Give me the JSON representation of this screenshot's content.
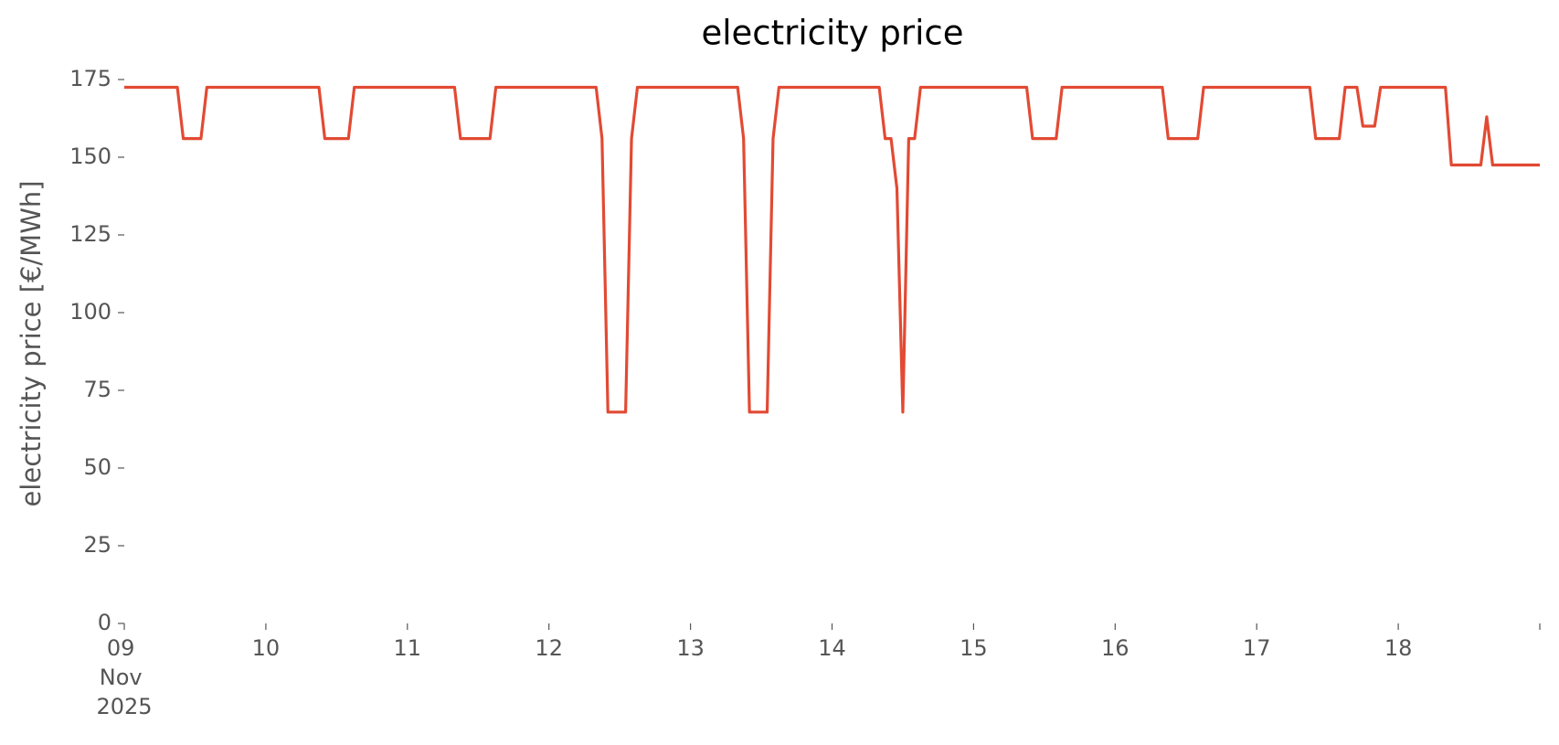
{
  "chart_data": {
    "type": "line",
    "title": "electricity price",
    "ylabel": "electricity price [€/MWh]",
    "color": "#e24a33",
    "x": [
      0,
      1,
      2,
      3,
      4,
      5,
      6,
      7,
      8,
      9,
      10,
      11,
      12,
      13,
      14,
      15,
      16,
      17,
      18,
      19,
      20,
      21,
      22,
      23,
      24,
      25,
      26,
      27,
      28,
      29,
      30,
      31,
      32,
      33,
      34,
      35,
      36,
      37,
      38,
      39,
      40,
      41,
      42,
      43,
      44,
      45,
      46,
      47,
      48,
      49,
      50,
      51,
      52,
      53,
      54,
      55,
      56,
      57,
      58,
      59,
      60,
      61,
      62,
      63,
      64,
      65,
      66,
      67,
      68,
      69,
      70,
      71,
      72,
      73,
      74,
      75,
      76,
      77,
      78,
      79,
      80,
      81,
      82,
      83,
      84,
      85,
      86,
      87,
      88,
      89,
      90,
      91,
      92,
      93,
      94,
      95,
      96,
      97,
      98,
      99,
      100,
      101,
      102,
      103,
      104,
      105,
      106,
      107,
      108,
      109,
      110,
      111,
      112,
      113,
      114,
      115,
      116,
      117,
      118,
      119,
      120,
      121,
      122,
      123,
      124,
      125,
      126,
      127,
      128,
      129,
      130,
      131,
      132,
      133,
      134,
      135,
      136,
      137,
      138,
      139,
      140,
      141,
      142,
      143,
      144,
      145,
      146,
      147,
      148,
      149,
      150,
      151,
      152,
      153,
      154,
      155,
      156,
      157,
      158,
      159,
      160,
      161,
      162,
      163,
      164,
      165,
      166,
      167,
      168,
      169,
      170,
      171,
      172,
      173,
      174,
      175,
      176,
      177,
      178,
      179,
      180,
      181,
      182,
      183,
      184,
      185,
      186,
      187,
      188,
      189,
      190,
      191,
      192,
      193,
      194,
      195,
      196,
      197,
      198,
      199,
      200,
      201,
      202,
      203,
      204,
      205,
      206,
      207,
      208,
      209,
      210,
      211,
      212,
      213,
      214,
      215,
      216,
      217,
      218,
      219,
      220,
      221,
      222,
      223,
      224,
      225,
      226,
      227,
      228,
      229,
      230,
      231,
      232,
      233,
      234,
      235,
      236,
      237,
      238,
      239,
      240
    ],
    "values": [
      172.5,
      172.5,
      172.5,
      172.5,
      172.5,
      172.5,
      172.5,
      172.5,
      172.5,
      172.5,
      156,
      156,
      156,
      156,
      172.5,
      172.5,
      172.5,
      172.5,
      172.5,
      172.5,
      172.5,
      172.5,
      172.5,
      172.5,
      172.5,
      172.5,
      172.5,
      172.5,
      172.5,
      172.5,
      172.5,
      172.5,
      172.5,
      172.5,
      156,
      156,
      156,
      156,
      156,
      172.5,
      172.5,
      172.5,
      172.5,
      172.5,
      172.5,
      172.5,
      172.5,
      172.5,
      172.5,
      172.5,
      172.5,
      172.5,
      172.5,
      172.5,
      172.5,
      172.5,
      172.5,
      156,
      156,
      156,
      156,
      156,
      156,
      172.5,
      172.5,
      172.5,
      172.5,
      172.5,
      172.5,
      172.5,
      172.5,
      172.5,
      172.5,
      172.5,
      172.5,
      172.5,
      172.5,
      172.5,
      172.5,
      172.5,
      172.5,
      156,
      68,
      68,
      68,
      68,
      156,
      172.5,
      172.5,
      172.5,
      172.5,
      172.5,
      172.5,
      172.5,
      172.5,
      172.5,
      172.5,
      172.5,
      172.5,
      172.5,
      172.5,
      172.5,
      172.5,
      172.5,
      172.5,
      156,
      68,
      68,
      68,
      68,
      156,
      172.5,
      172.5,
      172.5,
      172.5,
      172.5,
      172.5,
      172.5,
      172.5,
      172.5,
      172.5,
      172.5,
      172.5,
      172.5,
      172.5,
      172.5,
      172.5,
      172.5,
      172.5,
      156,
      156,
      140,
      68,
      156,
      156,
      172.5,
      172.5,
      172.5,
      172.5,
      172.5,
      172.5,
      172.5,
      172.5,
      172.5,
      172.5,
      172.5,
      172.5,
      172.5,
      172.5,
      172.5,
      172.5,
      172.5,
      172.5,
      172.5,
      156,
      156,
      156,
      156,
      156,
      172.5,
      172.5,
      172.5,
      172.5,
      172.5,
      172.5,
      172.5,
      172.5,
      172.5,
      172.5,
      172.5,
      172.5,
      172.5,
      172.5,
      172.5,
      172.5,
      172.5,
      172.5,
      156,
      156,
      156,
      156,
      156,
      156,
      172.5,
      172.5,
      172.5,
      172.5,
      172.5,
      172.5,
      172.5,
      172.5,
      172.5,
      172.5,
      172.5,
      172.5,
      172.5,
      172.5,
      172.5,
      172.5,
      172.5,
      172.5,
      172.5,
      156,
      156,
      156,
      156,
      156,
      172.5,
      172.5,
      172.5,
      160,
      160,
      160,
      172.5,
      172.5,
      172.5,
      172.5,
      172.5,
      172.5,
      172.5,
      172.5,
      172.5,
      172.5,
      172.5,
      172.5,
      147.5,
      147.5,
      147.5,
      147.5,
      147.5,
      147.5,
      163,
      147.5,
      147.5,
      147.5,
      147.5,
      147.5,
      147.5,
      147.5,
      147.5,
      147.5
    ],
    "xlim": [
      0,
      240
    ],
    "xticks": [
      {
        "value": 0,
        "label": "09 Nov 2025"
      },
      {
        "value": 24,
        "label": "10"
      },
      {
        "value": 48,
        "label": "11"
      },
      {
        "value": 72,
        "label": "12"
      },
      {
        "value": 96,
        "label": "13"
      },
      {
        "value": 120,
        "label": "14"
      },
      {
        "value": 144,
        "label": "15"
      },
      {
        "value": 168,
        "label": "16"
      },
      {
        "value": 192,
        "label": "17"
      },
      {
        "value": 216,
        "label": "18"
      },
      {
        "value": 240,
        "label": null
      }
    ],
    "ylim": [
      0,
      175
    ],
    "yticks": [
      0,
      25,
      50,
      75,
      100,
      125,
      150,
      175
    ],
    "grid": false
  }
}
